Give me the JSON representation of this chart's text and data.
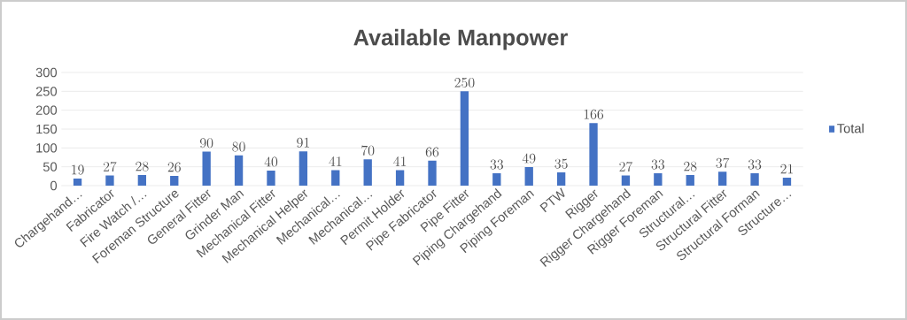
{
  "chart_data": {
    "type": "bar",
    "title": "Available Manpower",
    "categories": [
      "Chargehand…",
      "Fabricator",
      "Fire Watch /…",
      "Foreman Structure",
      "General Fitter",
      "Grinder Man",
      "Mechanical Fitter",
      "Mechanical Helper",
      "Mechanical…",
      "Mechanical…",
      "Permit Holder",
      "Pipe Fabricator",
      "Pipe Fitter",
      "Piping Chargehand",
      "Piping Foreman",
      "PTW",
      "Rigger",
      "Rigger Chargehand",
      "Rigger Foreman",
      "Structural…",
      "Structural Fitter",
      "Structural Forman",
      "Structure…"
    ],
    "series": [
      {
        "name": "Total",
        "color": "#4472c4",
        "values": [
          19,
          27,
          28,
          26,
          90,
          80,
          40,
          91,
          41,
          70,
          41,
          66,
          250,
          33,
          49,
          35,
          166,
          27,
          33,
          28,
          37,
          33,
          21
        ]
      }
    ],
    "ylim": [
      0,
      300
    ],
    "yticks": [
      0,
      50,
      100,
      150,
      200,
      250,
      300
    ],
    "grid": "y",
    "legend": "right",
    "data_labels": true
  }
}
